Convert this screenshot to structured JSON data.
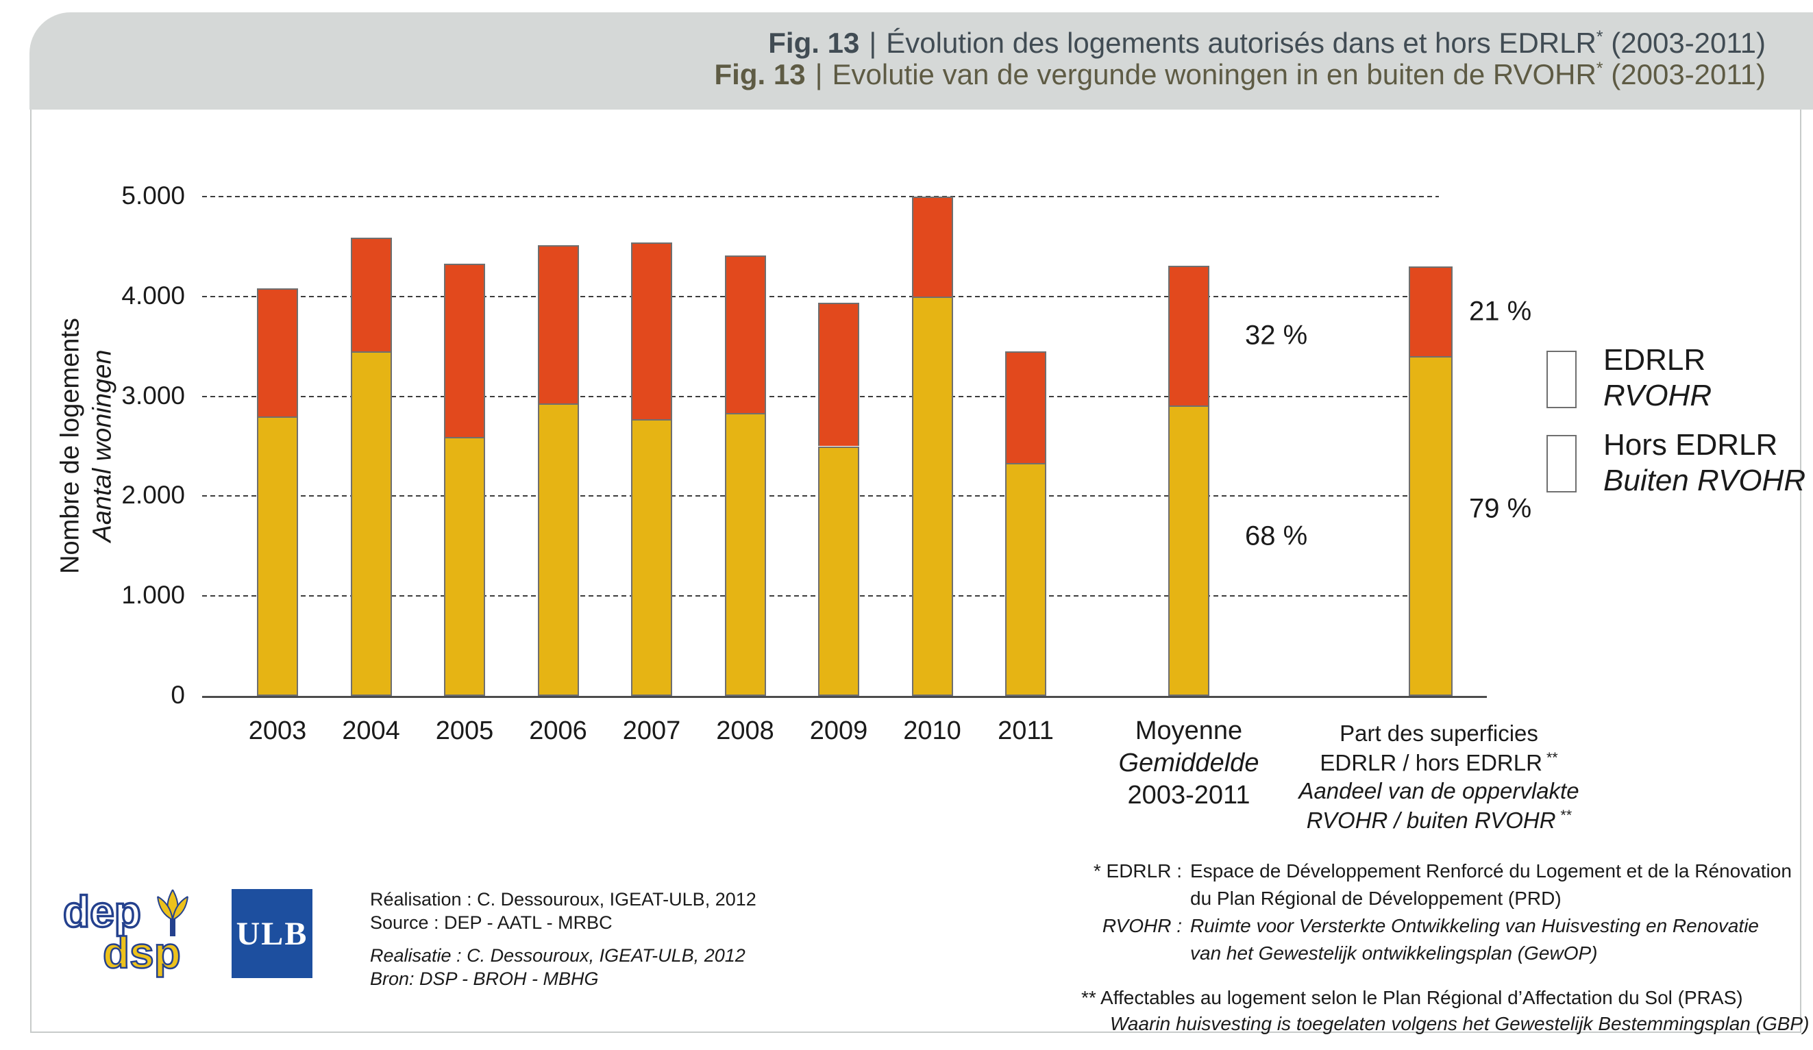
{
  "header": {
    "fig_label": "Fig. 13",
    "separator": "|",
    "title_fr": "Évolution des logements autorisés dans et hors EDRLR",
    "title_nl": "Evolutie van de vergunde woningen in en buiten de RVOHR",
    "asterisk": "*",
    "period": " (2003-2011)"
  },
  "colors": {
    "edrlr": "#e2491d",
    "hors_edrlr": "#e6b414",
    "band": "#d5d8d7",
    "title_fr": "#414c54",
    "title_nl": "#5e5b44"
  },
  "chart_data": {
    "type": "bar",
    "stacked": true,
    "ylabel_fr": "Nombre de logements",
    "ylabel_nl": "Aantal woningen",
    "ylim": [
      0,
      5000
    ],
    "grid": "horizontal-dashed",
    "y_ticks": [
      {
        "label": "5.000",
        "value": 5000
      },
      {
        "label": "4.000",
        "value": 4000
      },
      {
        "label": "3.000",
        "value": 3000
      },
      {
        "label": "2.000",
        "value": 2000
      },
      {
        "label": "1.000",
        "value": 1000
      },
      {
        "label": "0",
        "value": 0
      }
    ],
    "series": [
      {
        "name": "EDRLR / RVOHR",
        "color_key": "edrlr"
      },
      {
        "name": "Hors EDRLR / Buiten RVOHR",
        "color_key": "hors_edrlr"
      }
    ],
    "categories": [
      "2003",
      "2004",
      "2005",
      "2006",
      "2007",
      "2008",
      "2009",
      "2010",
      "2011"
    ],
    "bars": [
      {
        "label": "2003",
        "hors_edrlr": 2800,
        "edrlr": 1280
      },
      {
        "label": "2004",
        "hors_edrlr": 3450,
        "edrlr": 1140
      },
      {
        "label": "2005",
        "hors_edrlr": 2590,
        "edrlr": 1740
      },
      {
        "label": "2006",
        "hors_edrlr": 2930,
        "edrlr": 1580
      },
      {
        "label": "2007",
        "hors_edrlr": 2770,
        "edrlr": 1770
      },
      {
        "label": "2008",
        "hors_edrlr": 2830,
        "edrlr": 1580
      },
      {
        "label": "2009",
        "hors_edrlr": 2500,
        "edrlr": 1440
      },
      {
        "label": "2010",
        "hors_edrlr": 4000,
        "edrlr": 1000
      },
      {
        "label": "2011",
        "hors_edrlr": 2330,
        "edrlr": 1120
      }
    ],
    "average_bar": {
      "labels": [
        "Moyenne",
        "Gemiddelde",
        "2003-2011"
      ],
      "labels_italic": [
        false,
        true,
        false
      ],
      "hors_edrlr": 2910,
      "edrlr": 1400,
      "pct_edrlr_label": "32 %",
      "pct_hors_label": "68 %"
    },
    "share_bar": {
      "label_lines": [
        {
          "text": "Part des superficies",
          "italic": false,
          "sup": ""
        },
        {
          "text": "EDRLR / hors EDRLR",
          "italic": false,
          "sup": "**"
        },
        {
          "text": "Aandeel van de oppervlakte",
          "italic": true,
          "sup": ""
        },
        {
          "text": "RVOHR / buiten RVOHR",
          "italic": true,
          "sup": "**"
        }
      ],
      "hors_edrlr": 3400,
      "edrlr": 900,
      "pct_edrlr_label": "21 %",
      "pct_hors_label": "79 %"
    },
    "legend": {
      "position": "right",
      "entries": [
        {
          "color_key": "edrlr",
          "line1": "EDRLR",
          "line2": "RVOHR"
        },
        {
          "color_key": "hors_edrlr",
          "line1": "Hors EDRLR",
          "line2": "Buiten RVOHR"
        }
      ]
    }
  },
  "footnotes": {
    "asterisk_block": {
      "row1_prefix": "* EDRLR :",
      "row1_line1": "Espace de Développement Renforcé du Logement et de la Rénovation",
      "row1_line2": "du Plan Régional de Développement (PRD)",
      "row2_prefix": "RVOHR :",
      "row2_line1": "Ruimte voor Versterkte Ontwikkeling van Huisvesting en Renovatie",
      "row2_line2": "van het Gewestelijk ontwikkelingsplan (GewOP)"
    },
    "double_asterisk_block": {
      "line1": "** Affectables au logement selon le Plan Régional d’Affectation du Sol (PRAS)",
      "line2": "Waarin huisvesting is toegelaten volgens het Gewestelijk Bestemmingsplan (GBP)"
    }
  },
  "credits": {
    "line1_fr": "Réalisation : C. Dessouroux, IGEAT-ULB, 2012",
    "line2_fr": "Source : DEP - AATL - MRBC",
    "line1_nl": "Realisatie : C. Dessouroux, IGEAT-ULB, 2012",
    "line2_nl": "Bron: DSP -  BROH - MBHG"
  },
  "logos": {
    "dep_dsp_top": "dep",
    "dep_dsp_bottom": "dsp",
    "ulb": "ULB"
  }
}
